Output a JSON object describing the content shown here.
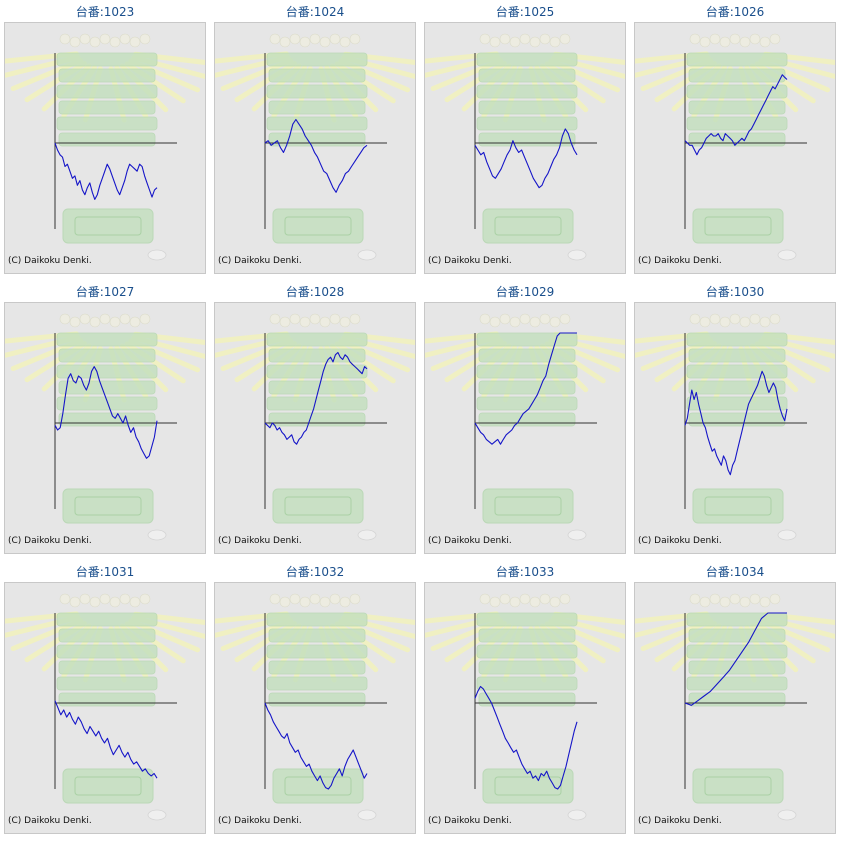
{
  "colors": {
    "title": "#1a4f8c",
    "line": "#1515c8",
    "axis": "#333333",
    "panel_bg": "#e6e6e6",
    "decoration_green": "#b6ddb0",
    "decoration_ray": "#f4f4b6"
  },
  "chart_data": [
    {
      "type": "line",
      "title": "台番:1023",
      "copyright": "(C) Daikoku Denki.",
      "y": [
        0,
        -3,
        -5,
        -6,
        -10,
        -9,
        -12,
        -15,
        -14,
        -18,
        -16,
        -20,
        -22,
        -19,
        -17,
        -21,
        -24,
        -22,
        -18,
        -15,
        -12,
        -9,
        -11,
        -14,
        -17,
        -20,
        -22,
        -19,
        -16,
        -12,
        -9,
        -10,
        -11,
        -12,
        -9,
        -10,
        -14,
        -17,
        -20,
        -23,
        -20,
        -19
      ]
    },
    {
      "type": "line",
      "title": "台番:1024",
      "copyright": "(C) Daikoku Denki.",
      "y": [
        0,
        1,
        -1,
        0,
        1,
        -2,
        -4,
        -1,
        3,
        8,
        10,
        8,
        6,
        3,
        1,
        -1,
        -4,
        -6,
        -9,
        -12,
        -13,
        -16,
        -19,
        -21,
        -18,
        -16,
        -13,
        -12,
        -10,
        -8,
        -6,
        -4,
        -2,
        -1
      ]
    },
    {
      "type": "line",
      "title": "台番:1025",
      "copyright": "(C) Daikoku Denki.",
      "y": [
        -1,
        -3,
        -5,
        -4,
        -8,
        -11,
        -14,
        -15,
        -13,
        -11,
        -8,
        -5,
        -3,
        1,
        -2,
        -4,
        -3,
        -6,
        -9,
        -12,
        -15,
        -17,
        -19,
        -18,
        -15,
        -13,
        -10,
        -7,
        -5,
        -2,
        3,
        6,
        4,
        0,
        -3,
        -5
      ]
    },
    {
      "type": "line",
      "title": "台番:1026",
      "copyright": "(C) Daikoku Denki.",
      "y": [
        1,
        0,
        -1,
        -1,
        -3,
        -5,
        -3,
        -2,
        0,
        2,
        3,
        4,
        3,
        3,
        4,
        2,
        1,
        4,
        3,
        2,
        1,
        -1,
        0,
        1,
        2,
        1,
        3,
        5,
        6,
        8,
        10,
        12,
        14,
        16,
        18,
        20,
        22,
        24,
        23,
        25,
        27,
        29,
        28,
        27
      ]
    },
    {
      "type": "line",
      "title": "台番:1027",
      "copyright": "(C) Daikoku Denki.",
      "y": [
        -1,
        -3,
        -2,
        4,
        12,
        19,
        21,
        18,
        17,
        20,
        19,
        16,
        14,
        17,
        22,
        24,
        22,
        18,
        15,
        12,
        9,
        6,
        3,
        2,
        4,
        2,
        0,
        3,
        -1,
        -4,
        -2,
        -6,
        -8,
        -11,
        -13,
        -15,
        -14,
        -10,
        -6,
        1
      ]
    },
    {
      "type": "line",
      "title": "台番:1028",
      "copyright": "(C) Daikoku Denki.",
      "y": [
        0,
        -1,
        -2,
        0,
        -1,
        -3,
        -2,
        -4,
        -5,
        -7,
        -6,
        -5,
        -8,
        -9,
        -7,
        -6,
        -4,
        -3,
        0,
        3,
        6,
        10,
        14,
        18,
        22,
        25,
        27,
        28,
        26,
        29,
        30,
        28,
        27,
        29,
        28,
        26,
        25,
        24,
        23,
        22,
        21,
        24,
        23
      ]
    },
    {
      "type": "line",
      "title": "台番:1029",
      "copyright": "(C) Daikoku Denki.",
      "y": [
        0,
        -2,
        -4,
        -5,
        -7,
        -8,
        -9,
        -8,
        -7,
        -9,
        -7,
        -5,
        -4,
        -3,
        -1,
        0,
        2,
        4,
        5,
        6,
        8,
        10,
        12,
        15,
        18,
        20,
        25,
        29,
        33,
        37,
        40,
        41,
        42,
        41,
        43,
        42,
        44
      ]
    },
    {
      "type": "line",
      "title": "台番:1030",
      "copyright": "(C) Daikoku Denki.",
      "y": [
        -1,
        2,
        8,
        14,
        10,
        13,
        8,
        4,
        0,
        -2,
        -6,
        -9,
        -12,
        -11,
        -14,
        -16,
        -18,
        -14,
        -16,
        -20,
        -22,
        -18,
        -16,
        -12,
        -8,
        -4,
        0,
        4,
        8,
        10,
        12,
        14,
        16,
        19,
        22,
        20,
        16,
        13,
        15,
        17,
        15,
        10,
        6,
        3,
        1,
        6
      ]
    },
    {
      "type": "line",
      "title": "台番:1031",
      "copyright": "(C) Daikoku Denki.",
      "y": [
        1,
        -2,
        -5,
        -3,
        -6,
        -4,
        -7,
        -9,
        -6,
        -8,
        -11,
        -13,
        -10,
        -12,
        -14,
        -12,
        -15,
        -17,
        -15,
        -19,
        -22,
        -20,
        -18,
        -21,
        -23,
        -21,
        -24,
        -26,
        -25,
        -27,
        -29,
        -28,
        -30,
        -31,
        -30,
        -32
      ]
    },
    {
      "type": "line",
      "title": "台番:1032",
      "copyright": "(C) Daikoku Denki.",
      "y": [
        0,
        -3,
        -5,
        -8,
        -10,
        -12,
        -14,
        -15,
        -13,
        -17,
        -19,
        -21,
        -20,
        -23,
        -25,
        -27,
        -26,
        -29,
        -31,
        -33,
        -31,
        -34,
        -36,
        -38,
        -35,
        -32,
        -30,
        -28,
        -31,
        -27,
        -24,
        -22,
        -20,
        -23,
        -26,
        -29,
        -32,
        -30
      ]
    },
    {
      "type": "line",
      "title": "台番:1033",
      "copyright": "(C) Daikoku Denki.",
      "y": [
        2,
        5,
        7,
        6,
        4,
        2,
        0,
        -3,
        -6,
        -9,
        -12,
        -15,
        -17,
        -19,
        -21,
        -20,
        -23,
        -26,
        -28,
        -30,
        -29,
        -32,
        -31,
        -33,
        -30,
        -31,
        -29,
        -32,
        -34,
        -36,
        -38,
        -35,
        -31,
        -27,
        -22,
        -17,
        -12,
        -8
      ]
    },
    {
      "type": "line",
      "title": "台番:1034",
      "copyright": "(C) Daikoku Denki.",
      "y": [
        0,
        -1,
        1,
        3,
        5,
        8,
        11,
        14,
        18,
        22,
        26,
        31,
        36,
        42,
        48,
        54,
        60
      ]
    }
  ]
}
